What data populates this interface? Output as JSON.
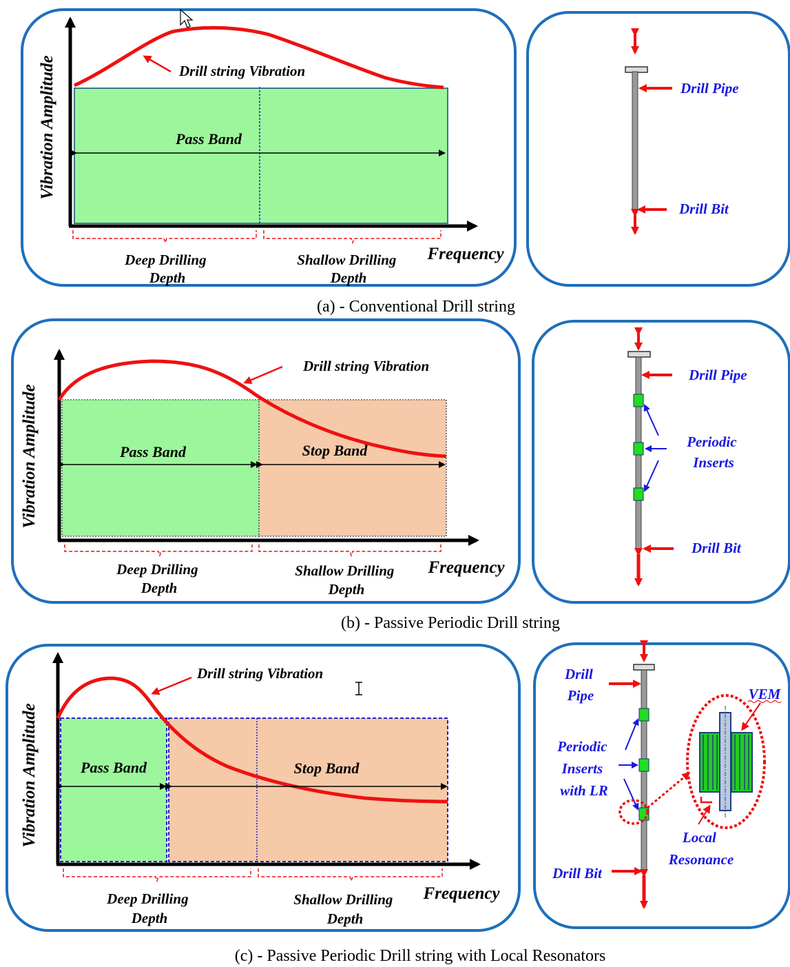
{
  "panel_a": {
    "y_axis": "Vibration Amplitude",
    "x_axis": "Frequency",
    "curve_label": "Drill string Vibration",
    "pass_band": "Pass Band",
    "deep_line1": "Deep Drilling",
    "deep_line2": "Depth",
    "shallow_line1": "Shallow Drilling",
    "shallow_line2": "Depth",
    "drill_pipe": "Drill Pipe",
    "drill_bit": "Drill Bit",
    "caption": "(a)  - Conventional Drill string"
  },
  "panel_b": {
    "y_axis": "Vibration Amplitude",
    "x_axis": "Frequency",
    "curve_label": "Drill string Vibration",
    "pass_band": "Pass Band",
    "stop_band": "Stop Band",
    "deep_line1": "Deep Drilling",
    "deep_line2": "Depth",
    "shallow_line1": "Shallow Drilling",
    "shallow_line2": "Depth",
    "drill_pipe": "Drill Pipe",
    "periodic_line1": "Periodic",
    "periodic_line2": "Inserts",
    "drill_bit": "Drill Bit",
    "caption": "(b)  - Passive Periodic Drill string"
  },
  "panel_c": {
    "y_axis": "Vibration Amplitude",
    "x_axis": "Frequency",
    "curve_label": "Drill string Vibration",
    "pass_band": "Pass Band",
    "stop_band": "Stop Band",
    "deep_line1": "Deep Drilling",
    "deep_line2": "Depth",
    "shallow_line1": "Shallow Drilling",
    "shallow_line2": "Depth",
    "drill_line1": "Drill",
    "drill_line2": "Pipe",
    "periodic_line1": "Periodic",
    "periodic_line2": "Inserts",
    "periodic_line3": "with LR",
    "vem": "VEM",
    "local_line1": "Local",
    "local_line2": "Resonance",
    "drill_bit": "Drill Bit",
    "caption": "(c)  - Passive Periodic Drill string with Local Resonators"
  },
  "colors": {
    "frame": "#1f6fba",
    "curve": "#ee1111",
    "pass_fill": "#9cf79c",
    "stop_fill": "#f6c9a8",
    "insert": "#22dd22",
    "label_blue": "#1818e0"
  }
}
